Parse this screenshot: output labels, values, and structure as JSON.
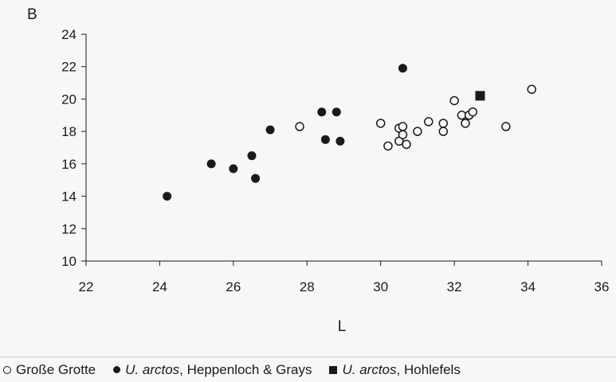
{
  "chart_data": {
    "type": "scatter",
    "title": "",
    "ylabel": "B",
    "xlabel": "L",
    "xlim": [
      22,
      36
    ],
    "ylim": [
      10,
      24
    ],
    "xticks": [
      22,
      24,
      26,
      28,
      30,
      32,
      34,
      36
    ],
    "yticks": [
      10,
      12,
      14,
      16,
      18,
      20,
      22,
      24
    ],
    "grid": false,
    "legend_position": "bottom",
    "series": [
      {
        "name": "Große Grotte",
        "marker": "open-circle",
        "color": "#1a1a1a",
        "points": [
          {
            "x": 27.8,
            "y": 18.3
          },
          {
            "x": 30.0,
            "y": 18.5
          },
          {
            "x": 30.2,
            "y": 17.1
          },
          {
            "x": 30.5,
            "y": 18.2
          },
          {
            "x": 30.5,
            "y": 17.4
          },
          {
            "x": 30.6,
            "y": 18.3
          },
          {
            "x": 30.6,
            "y": 17.8
          },
          {
            "x": 30.7,
            "y": 17.2
          },
          {
            "x": 31.0,
            "y": 18.0
          },
          {
            "x": 31.3,
            "y": 18.6
          },
          {
            "x": 31.7,
            "y": 18.5
          },
          {
            "x": 31.7,
            "y": 18.0
          },
          {
            "x": 32.0,
            "y": 19.9
          },
          {
            "x": 32.2,
            "y": 19.0
          },
          {
            "x": 32.3,
            "y": 18.5
          },
          {
            "x": 32.4,
            "y": 19.0
          },
          {
            "x": 32.5,
            "y": 19.2
          },
          {
            "x": 33.4,
            "y": 18.3
          },
          {
            "x": 34.1,
            "y": 20.6
          }
        ]
      },
      {
        "name_italic": "U. arctos",
        "name_rest": ", Heppenloch & Grays",
        "marker": "filled-circle",
        "color": "#1a1a1a",
        "points": [
          {
            "x": 24.2,
            "y": 14.0
          },
          {
            "x": 25.4,
            "y": 16.0
          },
          {
            "x": 26.0,
            "y": 15.7
          },
          {
            "x": 26.5,
            "y": 16.5
          },
          {
            "x": 26.6,
            "y": 15.1
          },
          {
            "x": 27.0,
            "y": 18.1
          },
          {
            "x": 28.4,
            "y": 19.2
          },
          {
            "x": 28.5,
            "y": 17.5
          },
          {
            "x": 28.8,
            "y": 19.2
          },
          {
            "x": 28.9,
            "y": 17.4
          },
          {
            "x": 30.6,
            "y": 21.9
          }
        ]
      },
      {
        "name_italic": "U. arctos",
        "name_rest": ", Hohlefels",
        "marker": "filled-square",
        "color": "#1a1a1a",
        "points": [
          {
            "x": 32.7,
            "y": 20.2
          }
        ]
      }
    ]
  }
}
